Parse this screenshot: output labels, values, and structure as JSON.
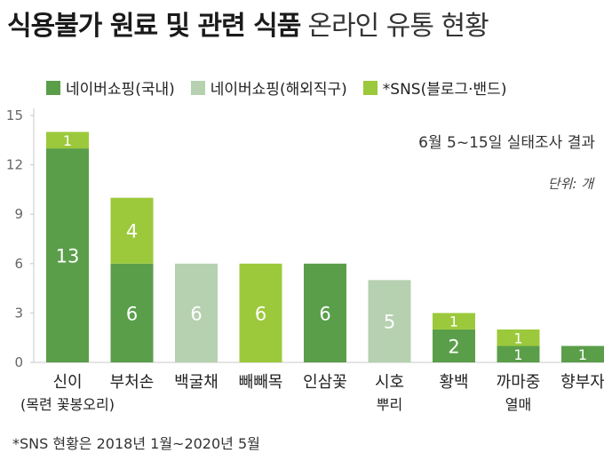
{
  "title": {
    "bold": "식용불가 원료 및 관련 식품",
    "light": "온라인 유통 현황"
  },
  "note": "6월 5~15일 실태조사 결과",
  "unit": "단위: 개",
  "footnote": "*SNS 현황은 2018년 1월~2020년 5월",
  "colors": {
    "domestic": "#5a9e4a",
    "overseas": "#b6d1b0",
    "sns": "#9cc93b",
    "axis": "#c8c8c8",
    "tick_text": "#666666"
  },
  "chart_data": {
    "type": "bar",
    "stacked": true,
    "categories": [
      [
        "신이",
        "(목련 꽃봉오리)"
      ],
      [
        "부처손"
      ],
      [
        "백굴채"
      ],
      [
        "빼빼목"
      ],
      [
        "인삼꽃"
      ],
      [
        "시호",
        "뿌리"
      ],
      [
        "황백"
      ],
      [
        "까마중",
        "열매"
      ],
      [
        "향부자"
      ]
    ],
    "series": [
      {
        "name": "네이버쇼핑(국내)",
        "color_key": "domestic",
        "values": [
          13,
          6,
          0,
          0,
          6,
          0,
          2,
          1,
          1
        ]
      },
      {
        "name": "네이버쇼핑(해외직구)",
        "color_key": "overseas",
        "values": [
          0,
          0,
          6,
          0,
          0,
          5,
          0,
          0,
          0
        ]
      },
      {
        "name": "*SNS(블로그·밴드)",
        "color_key": "sns",
        "values": [
          1,
          4,
          0,
          6,
          0,
          0,
          1,
          1,
          0
        ]
      }
    ],
    "yticks": [
      0,
      3,
      6,
      9,
      12,
      15
    ],
    "ylim": [
      0,
      15
    ],
    "legend_position": "top"
  }
}
